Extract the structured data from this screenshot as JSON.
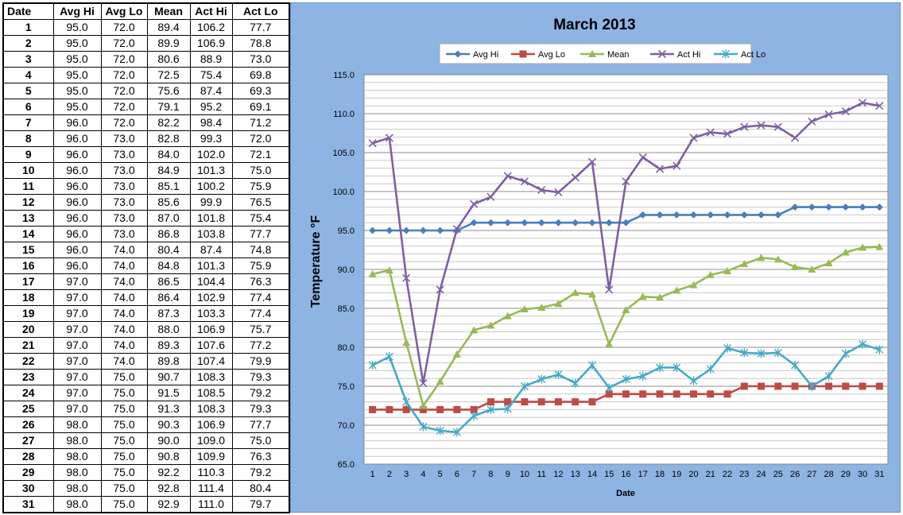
{
  "table": {
    "headers": [
      "Date",
      "Avg Hi",
      "Avg Lo",
      "Mean",
      "Act Hi",
      "Act Lo"
    ],
    "rows": [
      [
        "1",
        "95.0",
        "72.0",
        "89.4",
        "106.2",
        "77.7"
      ],
      [
        "2",
        "95.0",
        "72.0",
        "89.9",
        "106.9",
        "78.8"
      ],
      [
        "3",
        "95.0",
        "72.0",
        "80.6",
        "88.9",
        "73.0"
      ],
      [
        "4",
        "95.0",
        "72.0",
        "72.5",
        "75.4",
        "69.8"
      ],
      [
        "5",
        "95.0",
        "72.0",
        "75.6",
        "87.4",
        "69.3"
      ],
      [
        "6",
        "95.0",
        "72.0",
        "79.1",
        "95.2",
        "69.1"
      ],
      [
        "7",
        "96.0",
        "72.0",
        "82.2",
        "98.4",
        "71.2"
      ],
      [
        "8",
        "96.0",
        "73.0",
        "82.8",
        "99.3",
        "72.0"
      ],
      [
        "9",
        "96.0",
        "73.0",
        "84.0",
        "102.0",
        "72.1"
      ],
      [
        "10",
        "96.0",
        "73.0",
        "84.9",
        "101.3",
        "75.0"
      ],
      [
        "11",
        "96.0",
        "73.0",
        "85.1",
        "100.2",
        "75.9"
      ],
      [
        "12",
        "96.0",
        "73.0",
        "85.6",
        "99.9",
        "76.5"
      ],
      [
        "13",
        "96.0",
        "73.0",
        "87.0",
        "101.8",
        "75.4"
      ],
      [
        "14",
        "96.0",
        "73.0",
        "86.8",
        "103.8",
        "77.7"
      ],
      [
        "15",
        "96.0",
        "74.0",
        "80.4",
        "87.4",
        "74.8"
      ],
      [
        "16",
        "96.0",
        "74.0",
        "84.8",
        "101.3",
        "75.9"
      ],
      [
        "17",
        "97.0",
        "74.0",
        "86.5",
        "104.4",
        "76.3"
      ],
      [
        "18",
        "97.0",
        "74.0",
        "86.4",
        "102.9",
        "77.4"
      ],
      [
        "19",
        "97.0",
        "74.0",
        "87.3",
        "103.3",
        "77.4"
      ],
      [
        "20",
        "97.0",
        "74.0",
        "88.0",
        "106.9",
        "75.7"
      ],
      [
        "21",
        "97.0",
        "74.0",
        "89.3",
        "107.6",
        "77.2"
      ],
      [
        "22",
        "97.0",
        "74.0",
        "89.8",
        "107.4",
        "79.9"
      ],
      [
        "23",
        "97.0",
        "75.0",
        "90.7",
        "108.3",
        "79.3"
      ],
      [
        "24",
        "97.0",
        "75.0",
        "91.5",
        "108.5",
        "79.2"
      ],
      [
        "25",
        "97.0",
        "75.0",
        "91.3",
        "108.3",
        "79.3"
      ],
      [
        "26",
        "98.0",
        "75.0",
        "90.3",
        "106.9",
        "77.7"
      ],
      [
        "27",
        "98.0",
        "75.0",
        "90.0",
        "109.0",
        "75.0"
      ],
      [
        "28",
        "98.0",
        "75.0",
        "90.8",
        "109.9",
        "76.3"
      ],
      [
        "29",
        "98.0",
        "75.0",
        "92.2",
        "110.3",
        "79.2"
      ],
      [
        "30",
        "98.0",
        "75.0",
        "92.8",
        "111.4",
        "80.4"
      ],
      [
        "31",
        "98.0",
        "75.0",
        "92.9",
        "111.0",
        "79.7"
      ]
    ]
  },
  "chart_data": {
    "type": "line",
    "title": "March 2013",
    "xlabel": "Date",
    "ylabel": "Temperature  °F",
    "x": [
      1,
      2,
      3,
      4,
      5,
      6,
      7,
      8,
      9,
      10,
      11,
      12,
      13,
      14,
      15,
      16,
      17,
      18,
      19,
      20,
      21,
      22,
      23,
      24,
      25,
      26,
      27,
      28,
      29,
      30,
      31
    ],
    "ylim": [
      65,
      115
    ],
    "ytick_step": 5,
    "grid": true,
    "legend_position": "top",
    "series": [
      {
        "name": "Avg Hi",
        "color": "#4a7ebb",
        "marker": "diamond",
        "values": [
          95,
          95,
          95,
          95,
          95,
          95,
          96,
          96,
          96,
          96,
          96,
          96,
          96,
          96,
          96,
          96,
          97,
          97,
          97,
          97,
          97,
          97,
          97,
          97,
          97,
          98,
          98,
          98,
          98,
          98,
          98
        ]
      },
      {
        "name": "Avg Lo",
        "color": "#be4b48",
        "marker": "square",
        "values": [
          72,
          72,
          72,
          72,
          72,
          72,
          72,
          73,
          73,
          73,
          73,
          73,
          73,
          73,
          74,
          74,
          74,
          74,
          74,
          74,
          74,
          74,
          75,
          75,
          75,
          75,
          75,
          75,
          75,
          75,
          75
        ]
      },
      {
        "name": "Mean",
        "color": "#98b954",
        "marker": "triangle",
        "values": [
          89.4,
          89.9,
          80.6,
          72.5,
          75.6,
          79.1,
          82.2,
          82.8,
          84.0,
          84.9,
          85.1,
          85.6,
          87.0,
          86.8,
          80.4,
          84.8,
          86.5,
          86.4,
          87.3,
          88.0,
          89.3,
          89.8,
          90.7,
          91.5,
          91.3,
          90.3,
          90.0,
          90.8,
          92.2,
          92.8,
          92.9
        ]
      },
      {
        "name": "Act Hi",
        "color": "#7d60a0",
        "marker": "x",
        "values": [
          106.2,
          106.9,
          88.9,
          75.4,
          87.4,
          95.2,
          98.4,
          99.3,
          102.0,
          101.3,
          100.2,
          99.9,
          101.8,
          103.8,
          87.4,
          101.3,
          104.4,
          102.9,
          103.3,
          106.9,
          107.6,
          107.4,
          108.3,
          108.5,
          108.3,
          106.9,
          109.0,
          109.9,
          110.3,
          111.4,
          111.0
        ]
      },
      {
        "name": "Act Lo",
        "color": "#46aac5",
        "marker": "star",
        "values": [
          77.7,
          78.8,
          73.0,
          69.8,
          69.3,
          69.1,
          71.2,
          72.0,
          72.1,
          75.0,
          75.9,
          76.5,
          75.4,
          77.7,
          74.8,
          75.9,
          76.3,
          77.4,
          77.4,
          75.7,
          77.2,
          79.9,
          79.3,
          79.2,
          79.3,
          77.7,
          75.0,
          76.3,
          79.2,
          80.4,
          79.7
        ]
      }
    ]
  }
}
